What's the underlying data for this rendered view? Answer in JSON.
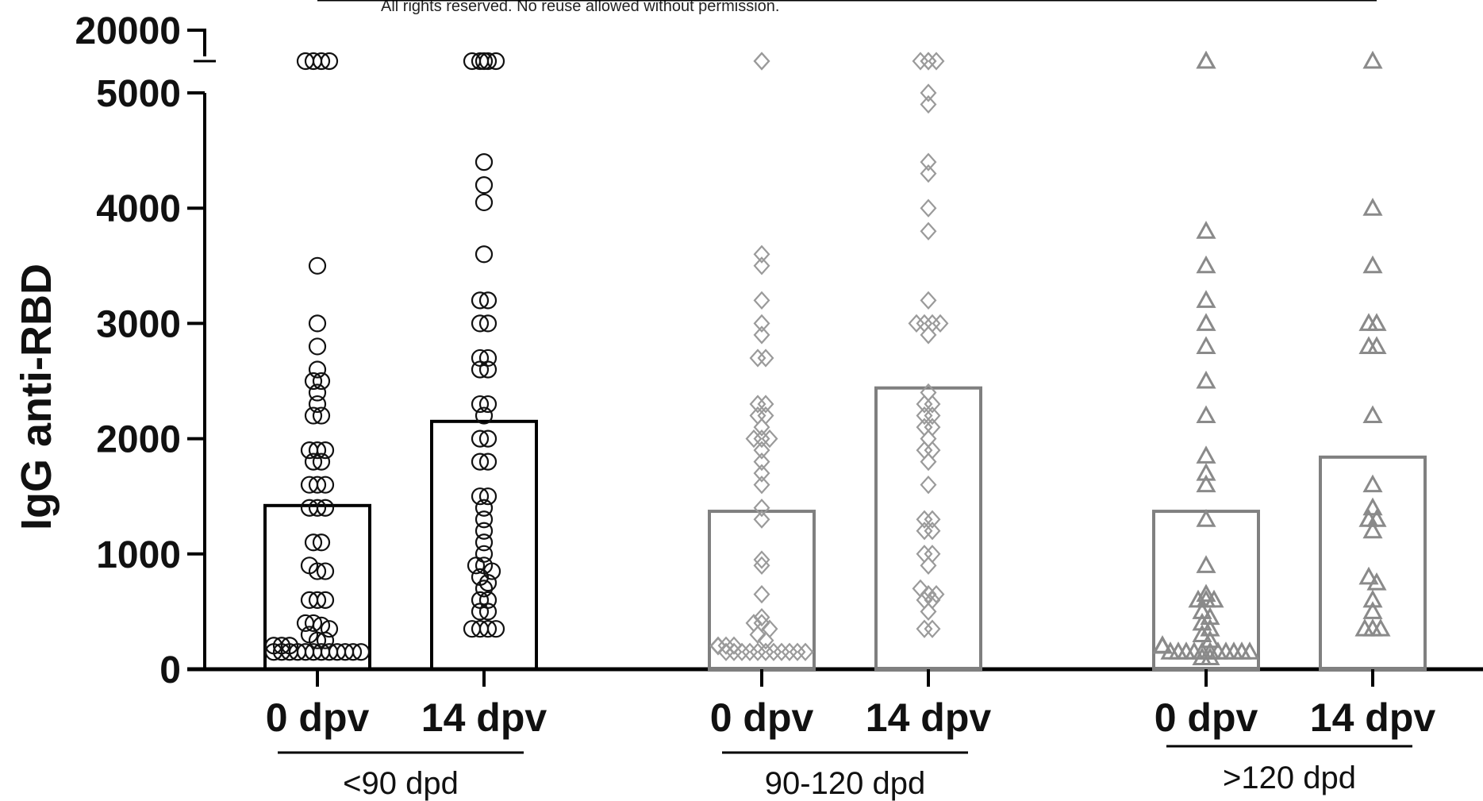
{
  "notice": "All rights reserved. No reuse allowed without permission.",
  "chart_data": {
    "type": "bar",
    "title": "",
    "xlabel": "",
    "ylabel": "IgG anti-RBD",
    "ylim": [
      0,
      20000
    ],
    "y_axis_break": [
      5000,
      20000
    ],
    "y_ticks": [
      0,
      1000,
      2000,
      3000,
      4000,
      5000,
      20000
    ],
    "y_tick_labels": [
      "0",
      "1000",
      "2000",
      "3000",
      "4000",
      "5000",
      "20000"
    ],
    "categories": [
      "0 dpv",
      "14 dpv",
      "0 dpv",
      "14 dpv",
      "0 dpv",
      "14 dpv"
    ],
    "groups": [
      {
        "label": "<90 dpd",
        "marker": "circle",
        "color": "#111111"
      },
      {
        "label": "90-120 dpd",
        "marker": "diamond",
        "color": "#9a9a9a"
      },
      {
        "label": ">120 dpd",
        "marker": "triangle",
        "color": "#8a8a8a"
      }
    ],
    "bars": [
      {
        "group": 0,
        "category": "0 dpv",
        "mean": 1420,
        "bar_color": "#000000",
        "points": [
          5400,
          5400,
          5400,
          5400,
          3500,
          3000,
          2800,
          2600,
          2500,
          2500,
          2400,
          2300,
          2200,
          2200,
          1900,
          1900,
          1900,
          1800,
          1800,
          1600,
          1600,
          1600,
          1400,
          1400,
          1400,
          1100,
          1100,
          900,
          850,
          850,
          600,
          600,
          600,
          400,
          400,
          380,
          350,
          300,
          250,
          250,
          150,
          150,
          150,
          150,
          150,
          150,
          150,
          150,
          150,
          150,
          150,
          150,
          150,
          150,
          150
        ]
      },
      {
        "group": 0,
        "category": "14 dpv",
        "mean": 2150,
        "bar_color": "#000000",
        "points": [
          5400,
          5400,
          5500,
          5400,
          5400,
          4400,
          4200,
          4050,
          3600,
          3200,
          3200,
          3000,
          3000,
          2700,
          2700,
          2600,
          2600,
          2300,
          2300,
          2200,
          2000,
          2000,
          1800,
          1800,
          1500,
          1500,
          1400,
          1300,
          1200,
          1100,
          1000,
          900,
          900,
          850,
          800,
          750,
          700,
          600,
          600,
          500,
          500,
          350,
          350,
          350,
          350
        ]
      },
      {
        "group": 1,
        "category": "0 dpv",
        "mean": 1370,
        "bar_color": "#7f7f7f",
        "points": [
          5500,
          5400,
          3600,
          3500,
          3200,
          3000,
          2900,
          2700,
          2700,
          2300,
          2300,
          2200,
          2200,
          2100,
          2000,
          2000,
          2000,
          1900,
          1800,
          1700,
          1600,
          1400,
          1300,
          950,
          900,
          650,
          450,
          400,
          400,
          350,
          300,
          250,
          200,
          150,
          150,
          150,
          150,
          150,
          150,
          150,
          150,
          150,
          150,
          150,
          150,
          150,
          150
        ]
      },
      {
        "group": 1,
        "category": "14 dpv",
        "mean": 2440,
        "bar_color": "#7f7f7f",
        "points": [
          5400,
          5500,
          5400,
          5400,
          5000,
          4900,
          4400,
          4300,
          4000,
          3800,
          3200,
          3000,
          3000,
          3000,
          3000,
          2900,
          2400,
          2300,
          2300,
          2200,
          2200,
          2100,
          2100,
          2000,
          1900,
          1900,
          1800,
          1600,
          1300,
          1300,
          1200,
          1200,
          1000,
          1000,
          900,
          700,
          650,
          650,
          600,
          600,
          500,
          350,
          350
        ]
      },
      {
        "group": 2,
        "category": "0 dpv",
        "mean": 1370,
        "bar_color": "#808080",
        "points": [
          5500,
          5400,
          3800,
          3500,
          3200,
          3000,
          2800,
          2500,
          2200,
          1850,
          1700,
          1600,
          1300,
          900,
          650,
          600,
          600,
          600,
          500,
          450,
          400,
          350,
          300,
          250,
          200,
          150,
          150,
          150,
          150,
          150,
          150,
          150,
          150,
          150,
          150,
          150,
          150,
          100,
          100
        ]
      },
      {
        "group": 2,
        "category": "14 dpv",
        "mean": 1840,
        "bar_color": "#808080",
        "points": [
          5400,
          4000,
          3500,
          3000,
          3000,
          2800,
          2800,
          2200,
          1600,
          1400,
          1300,
          1300,
          1200,
          800,
          750,
          600,
          500,
          350,
          350,
          350
        ]
      }
    ]
  }
}
